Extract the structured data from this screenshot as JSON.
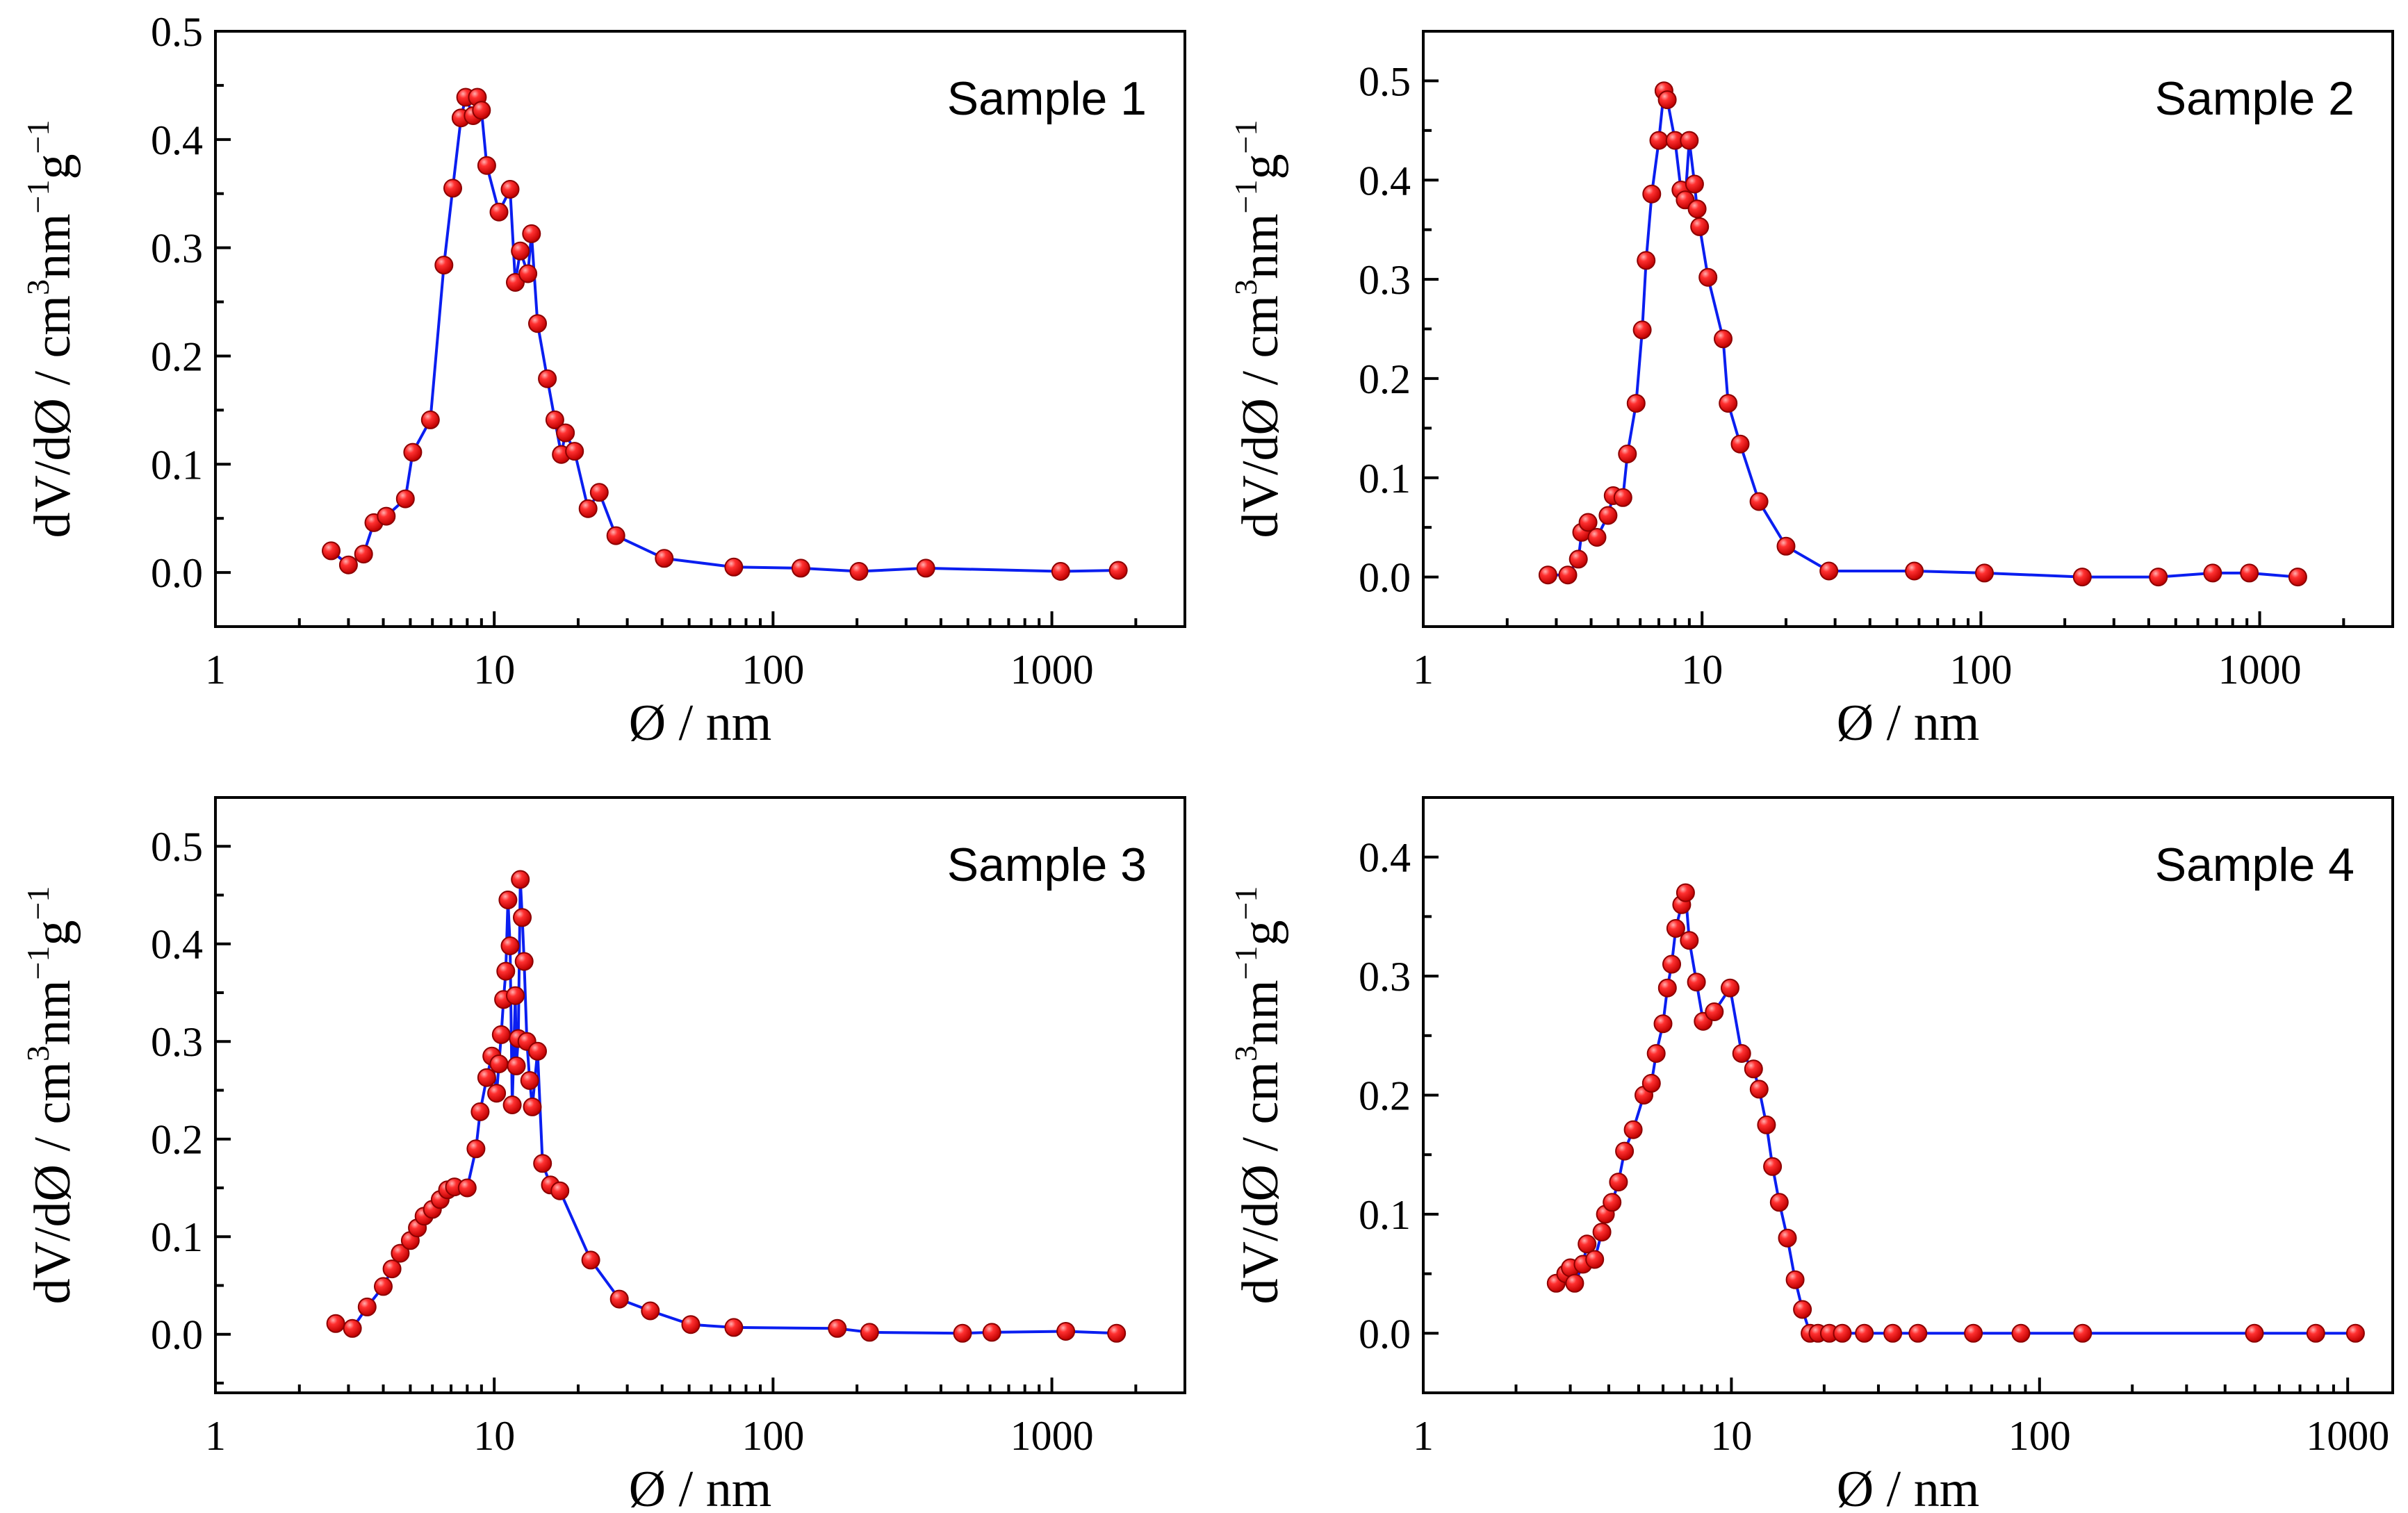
{
  "colors": {
    "line": "#0a1ef0",
    "marker": "#e81010",
    "marker_highlight": "#ffb0b0",
    "axis": "#000000"
  },
  "chart_data": [
    {
      "type": "scatter",
      "title": "Sample 1",
      "xlabel": "Ø / nm",
      "ylabel": "dV/dØ / cm",
      "ylabel_parts": [
        "dV/dØ / cm",
        "3",
        "nm",
        "−1",
        "g",
        "−1"
      ],
      "xscale": "log",
      "xlim": [
        1,
        3000
      ],
      "ylim": [
        -0.05,
        0.5
      ],
      "xticks": [
        1,
        10,
        100,
        1000
      ],
      "xtick_labels": [
        "1",
        "10",
        "100",
        "1000"
      ],
      "yticks": [
        0.0,
        0.1,
        0.2,
        0.3,
        0.4,
        0.5
      ],
      "ytick_labels": [
        "0.0",
        "0.1",
        "0.2",
        "0.3",
        "0.4",
        "0.5"
      ],
      "series": [
        {
          "name": "Sample 1",
          "x": [
            2.6,
            3.0,
            3.4,
            3.7,
            4.1,
            4.8,
            5.1,
            5.9,
            6.6,
            7.1,
            7.6,
            7.9,
            8.4,
            8.7,
            9.0,
            9.4,
            10.4,
            11.4,
            11.9,
            12.4,
            13.2,
            13.6,
            14.3,
            15.5,
            16.5,
            17.4,
            18.0,
            19.4,
            21.7,
            23.8,
            27.3,
            40.7,
            72.3,
            125.8,
            203.3,
            353.0,
            1076.0,
            1730.0
          ],
          "y": [
            0.02,
            0.007,
            0.017,
            0.046,
            0.052,
            0.068,
            0.111,
            0.141,
            0.284,
            0.355,
            0.42,
            0.439,
            0.422,
            0.439,
            0.427,
            0.376,
            0.333,
            0.354,
            0.268,
            0.297,
            0.276,
            0.313,
            0.23,
            0.179,
            0.141,
            0.109,
            0.129,
            0.112,
            0.059,
            0.074,
            0.034,
            0.013,
            0.005,
            0.004,
            0.001,
            0.004,
            0.001,
            0.002
          ]
        }
      ]
    },
    {
      "type": "scatter",
      "title": "Sample 2",
      "xlabel": "Ø / nm",
      "ylabel": "dV/dØ / cm",
      "ylabel_parts": [
        "dV/dØ / cm",
        "3",
        "nm",
        "−1",
        "g",
        "−1"
      ],
      "xscale": "log",
      "xlim": [
        1,
        3000
      ],
      "ylim": [
        -0.05,
        0.55
      ],
      "xticks": [
        1,
        10,
        100,
        1000
      ],
      "xtick_labels": [
        "1",
        "10",
        "100",
        "1000"
      ],
      "yticks": [
        0.0,
        0.1,
        0.2,
        0.3,
        0.4,
        0.5
      ],
      "ytick_labels": [
        "0.0",
        "0.1",
        "0.2",
        "0.3",
        "0.4",
        "0.5"
      ],
      "series": [
        {
          "name": "Sample 2",
          "x": [
            2.8,
            3.3,
            3.6,
            3.7,
            3.9,
            4.2,
            4.6,
            4.8,
            5.2,
            5.4,
            5.8,
            6.1,
            6.3,
            6.6,
            7.0,
            7.3,
            7.5,
            8.0,
            8.4,
            8.7,
            9.0,
            9.4,
            9.6,
            9.8,
            10.5,
            11.9,
            12.4,
            13.7,
            16.0,
            20.0,
            28.5,
            57.7,
            103.0,
            231.0,
            433.0,
            678.0,
            918.0,
            1370.0
          ],
          "y": [
            0.002,
            0.002,
            0.018,
            0.045,
            0.055,
            0.04,
            0.062,
            0.082,
            0.08,
            0.124,
            0.175,
            0.249,
            0.319,
            0.386,
            0.44,
            0.49,
            0.481,
            0.44,
            0.39,
            0.38,
            0.44,
            0.396,
            0.371,
            0.353,
            0.302,
            0.24,
            0.175,
            0.134,
            0.076,
            0.031,
            0.006,
            0.006,
            0.004,
            0.0,
            0.0,
            0.004,
            0.004,
            0.0
          ]
        }
      ]
    },
    {
      "type": "scatter",
      "title": "Sample 3",
      "xlabel": "Ø / nm",
      "ylabel": "dV/dØ / cm",
      "ylabel_parts": [
        "dV/dØ / cm",
        "3",
        "nm",
        "−1",
        "g",
        "−1"
      ],
      "xscale": "log",
      "xlim": [
        1,
        3000
      ],
      "ylim": [
        -0.06,
        0.55
      ],
      "xticks": [
        1,
        10,
        100,
        1000
      ],
      "xtick_labels": [
        "1",
        "10",
        "100",
        "1000"
      ],
      "yticks": [
        0.0,
        0.1,
        0.2,
        0.3,
        0.4,
        0.5
      ],
      "ytick_labels": [
        "0.0",
        "0.1",
        "0.2",
        "0.3",
        "0.4",
        "0.5"
      ],
      "series": [
        {
          "name": "Sample 3",
          "x": [
            2.7,
            3.1,
            3.5,
            4.0,
            4.3,
            4.6,
            5.0,
            5.3,
            5.6,
            6.0,
            6.4,
            6.8,
            7.2,
            8.0,
            8.6,
            8.9,
            9.4,
            9.8,
            10.2,
            10.4,
            10.6,
            10.8,
            11.0,
            11.2,
            11.4,
            11.6,
            11.9,
            12.0,
            12.2,
            12.4,
            12.6,
            12.8,
            13.1,
            13.4,
            13.7,
            14.3,
            14.9,
            15.9,
            17.2,
            22.2,
            28.1,
            36.3,
            50.7,
            72.3,
            170.0,
            222.0,
            478.0,
            609.0,
            1122.0,
            1706.0
          ],
          "y": [
            0.011,
            0.006,
            0.028,
            0.049,
            0.067,
            0.083,
            0.096,
            0.109,
            0.121,
            0.128,
            0.138,
            0.148,
            0.151,
            0.15,
            0.19,
            0.228,
            0.263,
            0.285,
            0.247,
            0.277,
            0.307,
            0.343,
            0.372,
            0.445,
            0.398,
            0.235,
            0.347,
            0.275,
            0.303,
            0.466,
            0.427,
            0.382,
            0.3,
            0.26,
            0.233,
            0.29,
            0.175,
            0.153,
            0.147,
            0.076,
            0.036,
            0.024,
            0.01,
            0.007,
            0.006,
            0.002,
            0.001,
            0.002,
            0.003,
            0.001
          ]
        }
      ]
    },
    {
      "type": "scatter",
      "title": "Sample 4",
      "xlabel": "Ø / nm",
      "ylabel": "dV/dØ / cm",
      "ylabel_parts": [
        "dV/dØ / cm",
        "3",
        "nm",
        "−1",
        "g",
        "−1"
      ],
      "xscale": "log",
      "xlim": [
        1,
        1400
      ],
      "ylim": [
        -0.05,
        0.45
      ],
      "xticks": [
        1,
        10,
        100,
        1000
      ],
      "xtick_labels": [
        "1",
        "10",
        "100",
        "1000"
      ],
      "yticks": [
        0.0,
        0.1,
        0.2,
        0.3,
        0.4
      ],
      "ytick_labels": [
        "0.0",
        "0.1",
        "0.2",
        "0.3",
        "0.4"
      ],
      "series": [
        {
          "name": "Sample 4",
          "x": [
            2.7,
            2.9,
            3.0,
            3.1,
            3.3,
            3.4,
            3.6,
            3.8,
            3.9,
            4.1,
            4.3,
            4.5,
            4.8,
            5.2,
            5.5,
            5.7,
            6.0,
            6.2,
            6.4,
            6.6,
            6.9,
            7.1,
            7.3,
            7.7,
            8.1,
            8.8,
            9.9,
            10.8,
            11.8,
            12.3,
            13.0,
            13.6,
            14.3,
            15.2,
            16.1,
            17.0,
            18.0,
            19.1,
            20.8,
            22.9,
            27.0,
            33.4,
            40.3,
            61.0,
            87.0,
            138.0,
            498.0,
            788.0,
            1060.0
          ],
          "y": [
            0.042,
            0.05,
            0.055,
            0.042,
            0.058,
            0.075,
            0.062,
            0.085,
            0.1,
            0.11,
            0.127,
            0.153,
            0.171,
            0.2,
            0.21,
            0.235,
            0.26,
            0.29,
            0.31,
            0.34,
            0.36,
            0.37,
            0.33,
            0.295,
            0.262,
            0.27,
            0.29,
            0.235,
            0.222,
            0.205,
            0.175,
            0.14,
            0.11,
            0.08,
            0.045,
            0.02,
            0.0,
            0.0,
            0.0,
            0.0,
            0.0,
            0.0,
            0.0,
            0.0,
            0.0,
            0.0,
            0.0,
            0.0,
            0.0
          ]
        }
      ]
    }
  ]
}
